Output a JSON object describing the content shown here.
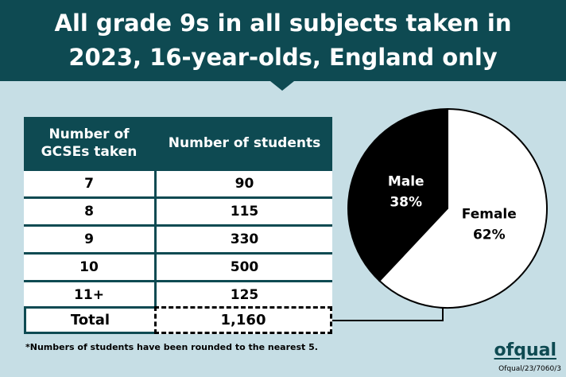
{
  "title": "All grade 9s in all subjects taken in 2023, 16-year-olds, England only",
  "table": {
    "header": [
      "Number of GCSEs taken",
      "Number of students"
    ],
    "rows": [
      [
        "7",
        "90"
      ],
      [
        "8",
        "115"
      ],
      [
        "9",
        "330"
      ],
      [
        "10",
        "500"
      ],
      [
        "11+",
        "125"
      ]
    ],
    "total": [
      "Total",
      "1,160"
    ]
  },
  "chart_data": {
    "type": "pie",
    "categories": [
      "Male",
      "Female"
    ],
    "values": [
      38,
      62
    ],
    "value_labels": [
      "38%",
      "62%"
    ],
    "colors": [
      "#000000",
      "#ffffff"
    ]
  },
  "footnote": "*Numbers of students have been rounded to the nearest 5.",
  "logo": "ofqual",
  "reference": "Ofqual/23/7060/3"
}
